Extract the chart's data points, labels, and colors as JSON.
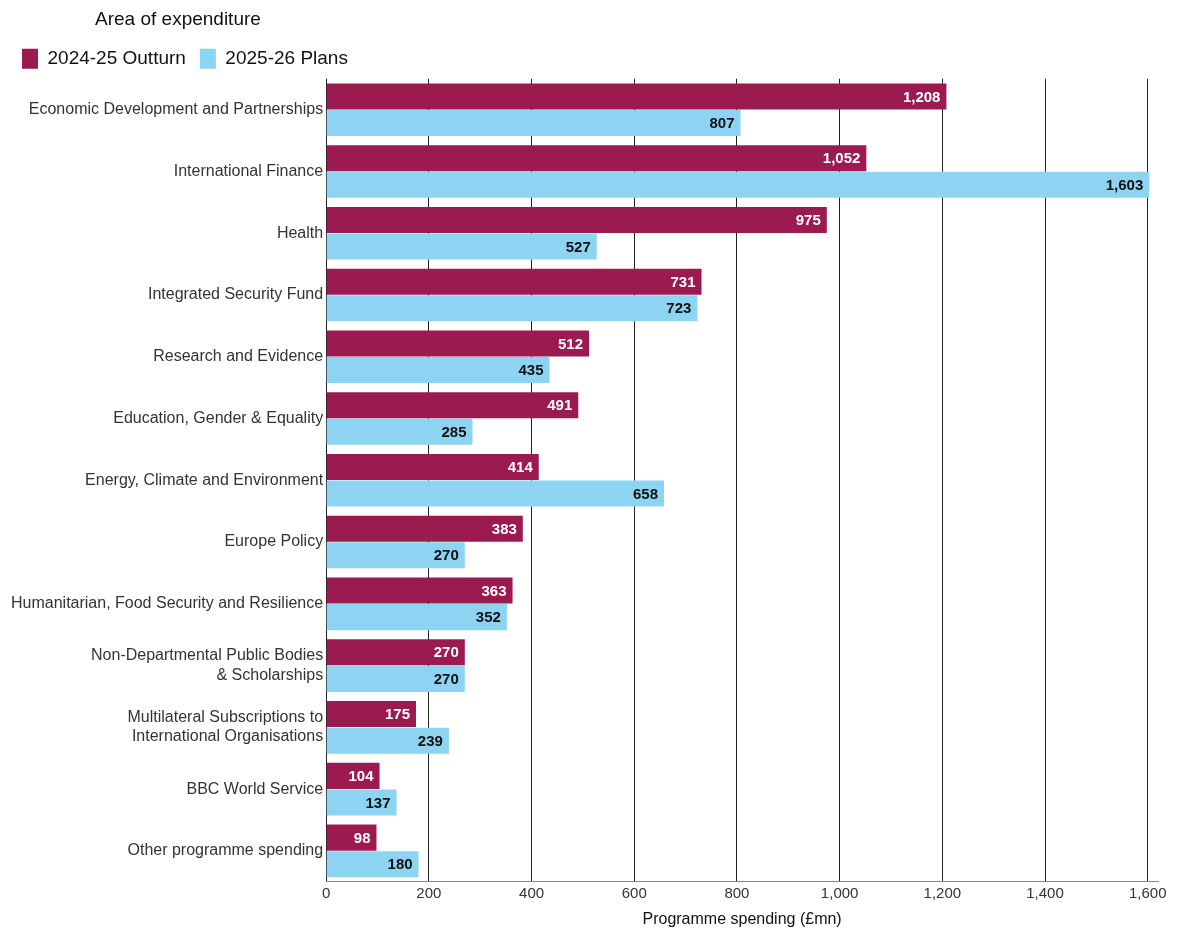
{
  "chart_data": {
    "type": "bar",
    "orientation": "horizontal",
    "xlabel": "Programme spending (£mn)",
    "legend_title": "Area of expenditure",
    "legend": "top left",
    "grid": "x",
    "categories": [
      "Economic Development and Partnerships",
      "International Finance",
      "Health",
      "Integrated Security Fund",
      "Research and Evidence",
      "Education, Gender & Equality",
      "Energy, Climate and Environment",
      "Europe Policy",
      "Humanitarian, Food Security and Resilience",
      "Non-Departmental Public Bodies\n& Scholarships",
      "Multilateral Subscriptions to\nInternational Organisations",
      "BBC World Service",
      "Other programme spending"
    ],
    "series": [
      {
        "name": "2024-25 Outturn",
        "color": "#9b1b50",
        "values": [
          1208,
          1052,
          975,
          731,
          512,
          491,
          414,
          383,
          363,
          270,
          175,
          104,
          98
        ],
        "value_labels": [
          "1,208",
          "1,052",
          "975",
          "731",
          "512",
          "491",
          "414",
          "383",
          "363",
          "270",
          "175",
          "104",
          "98"
        ]
      },
      {
        "name": "2025-26 Plans",
        "color": "#8dd3f2",
        "values": [
          807,
          1603,
          527,
          723,
          435,
          285,
          658,
          270,
          352,
          270,
          239,
          137,
          180
        ],
        "value_labels": [
          "807",
          "1,603",
          "527",
          "723",
          "435",
          "285",
          "658",
          "270",
          "352",
          "270",
          "239",
          "137",
          "180"
        ]
      }
    ],
    "xlim": [
      0,
      1620
    ],
    "xticks": [
      0,
      200,
      400,
      600,
      800,
      {
        "value": 1000,
        "label": "1,000"
      },
      {
        "value": 1200,
        "label": "1,200"
      },
      {
        "value": 1400,
        "label": "1,400"
      },
      {
        "value": 1600,
        "label": "1,600"
      }
    ]
  }
}
